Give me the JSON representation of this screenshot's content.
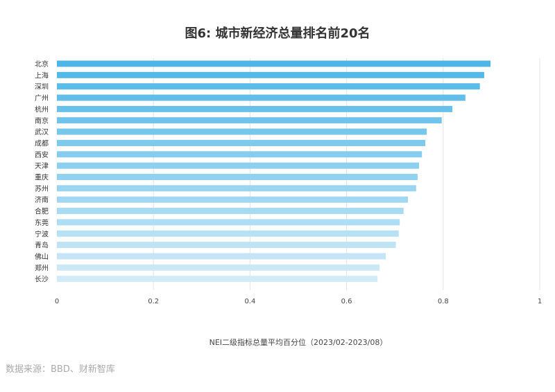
{
  "chart_data": {
    "type": "bar",
    "orientation": "horizontal",
    "title": "图6: 城市新经济总量排名前20名",
    "xlabel": "NEI二级指标总量平均百分位（2023/02-2023/08）",
    "ylabel": "",
    "xlim": [
      0,
      1
    ],
    "xticks": [
      "0",
      "0.2",
      "0.4",
      "0.6",
      "0.8",
      "1"
    ],
    "grid": true,
    "categories": [
      "北京",
      "上海",
      "深圳",
      "广州",
      "杭州",
      "南京",
      "武汉",
      "成都",
      "西安",
      "天津",
      "重庆",
      "苏州",
      "济南",
      "合肥",
      "东莞",
      "宁波",
      "青岛",
      "佛山",
      "郑州",
      "长沙"
    ],
    "values": [
      0.898,
      0.885,
      0.876,
      0.846,
      0.819,
      0.797,
      0.766,
      0.763,
      0.756,
      0.75,
      0.747,
      0.744,
      0.727,
      0.718,
      0.71,
      0.708,
      0.702,
      0.681,
      0.668,
      0.664
    ],
    "color_top": "#4db6e6",
    "color_bottom": "#d2ebf8"
  },
  "source": "数据来源：BBD、财新智库"
}
